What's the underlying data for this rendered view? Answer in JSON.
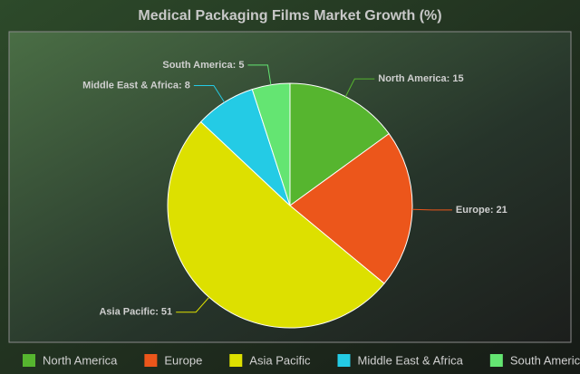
{
  "chart_data": {
    "type": "pie",
    "title": "Medical Packaging Films Market Growth (%)",
    "categories": [
      "North America",
      "Europe",
      "Asia Pacific",
      "Middle East & Africa",
      "South America"
    ],
    "values": [
      15,
      21,
      51,
      8,
      5
    ],
    "value_labels": [
      "North America: 15",
      "Europe: 21",
      "Asia Pacific: 51",
      "Middle East & Africa: 8",
      "South America: 5"
    ],
    "colors": [
      "#56b52f",
      "#ec561b",
      "#dde000",
      "#24cbe5",
      "#64e572"
    ],
    "legend": "bottom"
  }
}
